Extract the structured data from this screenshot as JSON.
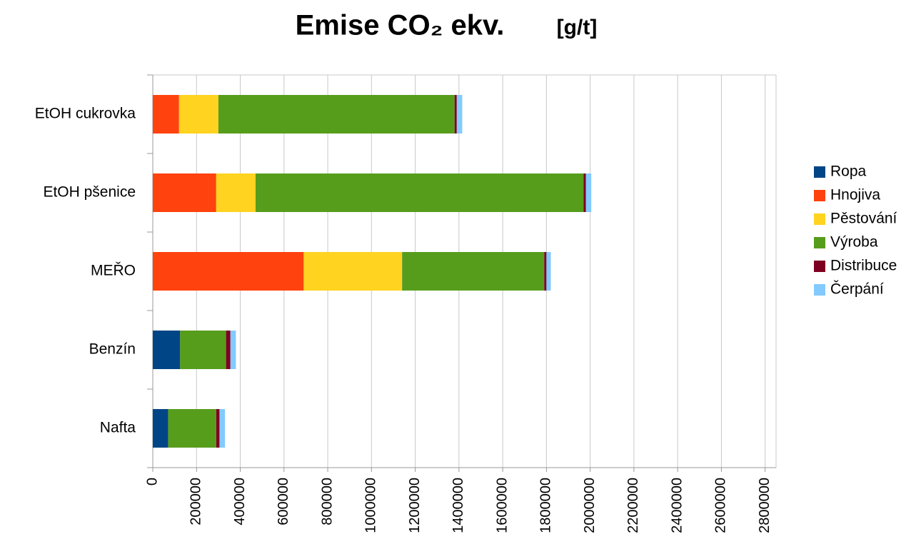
{
  "chart_data": {
    "type": "stacked-bar-horizontal",
    "title": "Emise CO₂ ekv.",
    "unit_label": "[g/t]",
    "categories": [
      "EtOH cukrovka",
      "EtOH pšenice",
      "MEŘO",
      "Benzín",
      "Nafta"
    ],
    "series": [
      {
        "name": "Ropa",
        "color": "#004586",
        "values": [
          0,
          0,
          0,
          125000,
          70000
        ]
      },
      {
        "name": "Hnojiva",
        "color": "#ff420e",
        "values": [
          120000,
          290000,
          690000,
          0,
          0
        ]
      },
      {
        "name": "Pěstování",
        "color": "#ffd320",
        "values": [
          180000,
          180000,
          450000,
          0,
          0
        ]
      },
      {
        "name": "Výroba",
        "color": "#579d1c",
        "values": [
          1080000,
          1500000,
          650000,
          210000,
          220000
        ]
      },
      {
        "name": "Distribuce",
        "color": "#7e0021",
        "values": [
          10000,
          10000,
          10000,
          20000,
          15000
        ]
      },
      {
        "name": "Čerpání",
        "color": "#83caff",
        "values": [
          25000,
          25000,
          20000,
          25000,
          25000
        ]
      }
    ],
    "xlim": [
      0,
      2850000
    ],
    "xticks": [
      0,
      200000,
      400000,
      600000,
      800000,
      1000000,
      1200000,
      1400000,
      1600000,
      1800000,
      2000000,
      2200000,
      2400000,
      2600000,
      2800000
    ],
    "grid": true,
    "legend": "right"
  }
}
